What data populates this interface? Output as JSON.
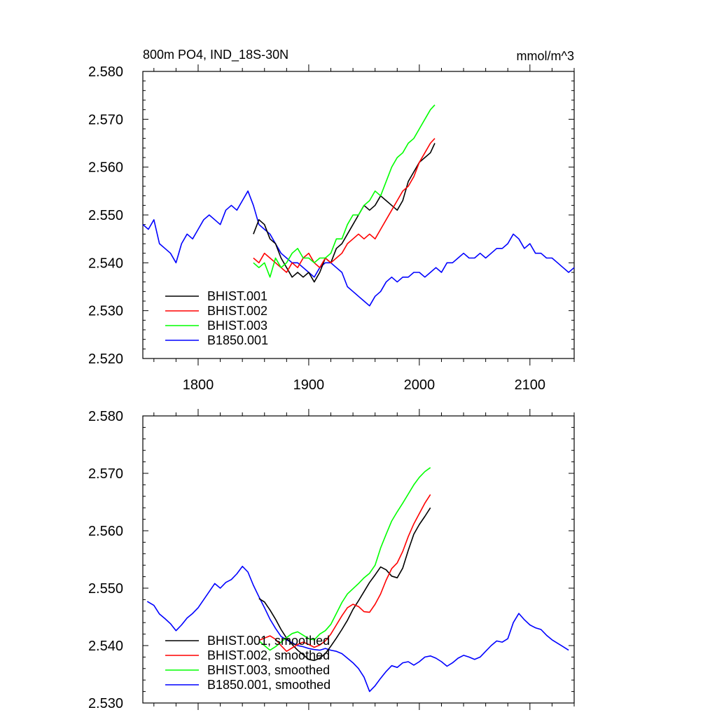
{
  "chart_data": [
    {
      "type": "line",
      "title": "800m PO4, IND_18S-30N",
      "units": "mmol/m^3",
      "xlim": [
        1750,
        2140
      ],
      "ylim": [
        2.52,
        2.58
      ],
      "xticks": [
        1800,
        1900,
        2000,
        2100
      ],
      "xtick_labels": [
        "1800",
        "1900",
        "2000",
        "2100"
      ],
      "yticks": [
        2.52,
        2.53,
        2.54,
        2.55,
        2.56,
        2.57,
        2.58
      ],
      "ytick_labels": [
        "2.520",
        "2.530",
        "2.540",
        "2.550",
        "2.560",
        "2.570",
        "2.580"
      ],
      "legend_position": "bottom-left",
      "series": [
        {
          "name": "BHIST.001",
          "color": "#000000",
          "x": [
            1850,
            1855,
            1860,
            1865,
            1870,
            1875,
            1880,
            1885,
            1890,
            1895,
            1900,
            1905,
            1910,
            1915,
            1920,
            1925,
            1930,
            1935,
            1940,
            1945,
            1950,
            1955,
            1960,
            1965,
            1970,
            1975,
            1980,
            1985,
            1990,
            1995,
            2000,
            2005,
            2010,
            2014
          ],
          "y": [
            2.546,
            2.549,
            2.548,
            2.545,
            2.544,
            2.541,
            2.539,
            2.537,
            2.538,
            2.537,
            2.538,
            2.536,
            2.538,
            2.541,
            2.54,
            2.543,
            2.544,
            2.546,
            2.548,
            2.55,
            2.552,
            2.551,
            2.552,
            2.554,
            2.553,
            2.552,
            2.551,
            2.553,
            2.557,
            2.559,
            2.561,
            2.562,
            2.563,
            2.565
          ]
        },
        {
          "name": "BHIST.002",
          "color": "#ff0000",
          "x": [
            1850,
            1855,
            1860,
            1865,
            1870,
            1875,
            1880,
            1885,
            1890,
            1895,
            1900,
            1905,
            1910,
            1915,
            1920,
            1925,
            1930,
            1935,
            1940,
            1945,
            1950,
            1955,
            1960,
            1965,
            1970,
            1975,
            1980,
            1985,
            1990,
            1995,
            2000,
            2005,
            2010,
            2014
          ],
          "y": [
            2.541,
            2.54,
            2.542,
            2.541,
            2.54,
            2.539,
            2.538,
            2.54,
            2.539,
            2.541,
            2.542,
            2.54,
            2.539,
            2.541,
            2.54,
            2.541,
            2.542,
            2.544,
            2.545,
            2.546,
            2.545,
            2.546,
            2.545,
            2.547,
            2.549,
            2.551,
            2.553,
            2.555,
            2.556,
            2.558,
            2.561,
            2.563,
            2.565,
            2.566
          ]
        },
        {
          "name": "BHIST.003",
          "color": "#00ff00",
          "x": [
            1850,
            1855,
            1860,
            1865,
            1870,
            1875,
            1880,
            1885,
            1890,
            1895,
            1900,
            1905,
            1910,
            1915,
            1920,
            1925,
            1930,
            1935,
            1940,
            1945,
            1950,
            1955,
            1960,
            1965,
            1970,
            1975,
            1980,
            1985,
            1990,
            1995,
            2000,
            2005,
            2010,
            2014
          ],
          "y": [
            2.54,
            2.539,
            2.54,
            2.537,
            2.541,
            2.539,
            2.54,
            2.542,
            2.543,
            2.541,
            2.541,
            2.54,
            2.541,
            2.541,
            2.542,
            2.545,
            2.545,
            2.548,
            2.55,
            2.55,
            2.552,
            2.553,
            2.555,
            2.554,
            2.557,
            2.56,
            2.562,
            2.563,
            2.565,
            2.566,
            2.568,
            2.57,
            2.572,
            2.573
          ]
        },
        {
          "name": "B1850.001",
          "color": "#0000ff",
          "x": [
            1750,
            1755,
            1760,
            1765,
            1770,
            1775,
            1780,
            1785,
            1790,
            1795,
            1800,
            1805,
            1810,
            1815,
            1820,
            1825,
            1830,
            1835,
            1840,
            1845,
            1850,
            1855,
            1860,
            1865,
            1870,
            1875,
            1880,
            1885,
            1890,
            1895,
            1900,
            1905,
            1910,
            1915,
            1920,
            1925,
            1930,
            1935,
            1940,
            1945,
            1950,
            1955,
            1960,
            1965,
            1970,
            1975,
            1980,
            1985,
            1990,
            1995,
            2000,
            2005,
            2010,
            2015,
            2020,
            2025,
            2030,
            2035,
            2040,
            2045,
            2050,
            2055,
            2060,
            2065,
            2070,
            2075,
            2080,
            2085,
            2090,
            2095,
            2100,
            2105,
            2110,
            2115,
            2120,
            2125,
            2130,
            2135,
            2140
          ],
          "y": [
            2.548,
            2.547,
            2.549,
            2.544,
            2.543,
            2.542,
            2.54,
            2.544,
            2.546,
            2.545,
            2.547,
            2.549,
            2.55,
            2.549,
            2.548,
            2.551,
            2.552,
            2.551,
            2.553,
            2.555,
            2.552,
            2.548,
            2.547,
            2.546,
            2.544,
            2.542,
            2.541,
            2.54,
            2.54,
            2.539,
            2.538,
            2.537,
            2.539,
            2.54,
            2.54,
            2.539,
            2.538,
            2.535,
            2.534,
            2.533,
            2.532,
            2.531,
            2.533,
            2.534,
            2.536,
            2.537,
            2.536,
            2.537,
            2.537,
            2.538,
            2.538,
            2.537,
            2.538,
            2.539,
            2.538,
            2.54,
            2.54,
            2.541,
            2.542,
            2.541,
            2.541,
            2.542,
            2.541,
            2.542,
            2.543,
            2.543,
            2.544,
            2.546,
            2.545,
            2.543,
            2.544,
            2.542,
            2.542,
            2.541,
            2.541,
            2.54,
            2.539,
            2.538,
            2.539
          ]
        }
      ]
    },
    {
      "type": "line",
      "title": "",
      "xlim": [
        1750,
        2140
      ],
      "ylim": [
        2.53,
        2.58
      ],
      "xticks": [
        1800,
        1900,
        2000,
        2100
      ],
      "yticks": [
        2.53,
        2.54,
        2.55,
        2.56,
        2.57,
        2.58
      ],
      "ytick_labels": [
        "2.530",
        "2.540",
        "2.550",
        "2.560",
        "2.570",
        "2.580"
      ],
      "legend_position": "bottom-left",
      "series": [
        {
          "name": "BHIST.001, smoothed",
          "color": "#000000",
          "x": [
            1855,
            1860,
            1865,
            1870,
            1875,
            1880,
            1885,
            1890,
            1895,
            1900,
            1905,
            1910,
            1915,
            1920,
            1925,
            1930,
            1935,
            1940,
            1945,
            1950,
            1955,
            1960,
            1965,
            1970,
            1975,
            1980,
            1985,
            1990,
            1995,
            2000,
            2005,
            2010
          ],
          "y": [
            2.5482,
            2.5476,
            2.5462,
            2.5446,
            2.5428,
            2.5413,
            2.5402,
            2.5392,
            2.5384,
            2.5376,
            2.5374,
            2.5378,
            2.5386,
            2.5399,
            2.5413,
            2.5428,
            2.5444,
            2.5463,
            2.5478,
            2.5494,
            2.551,
            2.5523,
            2.5537,
            2.5532,
            2.5521,
            2.5518,
            2.5535,
            2.5566,
            2.5594,
            2.5611,
            2.5625,
            2.564
          ]
        },
        {
          "name": "BHIST.002, smoothed",
          "color": "#ff0000",
          "x": [
            1855,
            1860,
            1865,
            1870,
            1875,
            1880,
            1885,
            1890,
            1895,
            1900,
            1905,
            1910,
            1915,
            1920,
            1925,
            1930,
            1935,
            1940,
            1945,
            1950,
            1955,
            1960,
            1965,
            1970,
            1975,
            1980,
            1985,
            1990,
            1995,
            2000,
            2005,
            2010
          ],
          "y": [
            2.5409,
            2.5413,
            2.5417,
            2.5411,
            2.54,
            2.539,
            2.5396,
            2.5402,
            2.5406,
            2.5402,
            2.5397,
            2.5401,
            2.5408,
            2.542,
            2.5436,
            2.5452,
            2.5466,
            2.5472,
            2.5468,
            2.5459,
            2.5458,
            2.5472,
            2.549,
            2.5514,
            2.5534,
            2.5544,
            2.5564,
            2.559,
            2.5612,
            2.563,
            2.5648,
            2.5663
          ]
        },
        {
          "name": "BHIST.003, smoothed",
          "color": "#00ff00",
          "x": [
            1855,
            1860,
            1865,
            1870,
            1875,
            1880,
            1885,
            1890,
            1895,
            1900,
            1905,
            1910,
            1915,
            1920,
            1925,
            1930,
            1935,
            1940,
            1945,
            1950,
            1955,
            1960,
            1965,
            1970,
            1975,
            1980,
            1985,
            1990,
            1995,
            2000,
            2005,
            2010
          ],
          "y": [
            2.5408,
            2.54,
            2.5392,
            2.5398,
            2.5406,
            2.5414,
            2.5421,
            2.5424,
            2.5418,
            2.5412,
            2.541,
            2.542,
            2.5426,
            2.5437,
            2.5456,
            2.5475,
            2.549,
            2.5499,
            2.5508,
            2.5518,
            2.5526,
            2.554,
            2.557,
            2.5594,
            2.5617,
            2.5633,
            2.5648,
            2.5664,
            2.568,
            2.5693,
            2.5703,
            2.571
          ]
        },
        {
          "name": "B1850.001, smoothed",
          "color": "#0000ff",
          "x": [
            1754,
            1760,
            1765,
            1770,
            1775,
            1780,
            1785,
            1790,
            1795,
            1800,
            1805,
            1810,
            1815,
            1820,
            1825,
            1830,
            1835,
            1840,
            1845,
            1850,
            1855,
            1860,
            1865,
            1870,
            1875,
            1880,
            1885,
            1890,
            1895,
            1900,
            1905,
            1910,
            1915,
            1920,
            1925,
            1930,
            1935,
            1940,
            1945,
            1950,
            1955,
            1960,
            1965,
            1970,
            1975,
            1980,
            1985,
            1990,
            1995,
            2000,
            2005,
            2010,
            2015,
            2020,
            2025,
            2030,
            2035,
            2040,
            2045,
            2050,
            2055,
            2060,
            2065,
            2070,
            2075,
            2080,
            2085,
            2090,
            2095,
            2100,
            2105,
            2110,
            2115,
            2120,
            2125,
            2130,
            2135
          ],
          "y": [
            2.5477,
            2.547,
            2.5455,
            2.5447,
            2.5438,
            2.5426,
            2.5436,
            2.5448,
            2.5456,
            2.5466,
            2.548,
            2.5494,
            2.5508,
            2.55,
            2.551,
            2.5515,
            2.5525,
            2.5538,
            2.5528,
            2.5505,
            2.5485,
            2.5466,
            2.5446,
            2.543,
            2.5416,
            2.541,
            2.5405,
            2.54,
            2.5398,
            2.5395,
            2.5393,
            2.5392,
            2.5395,
            2.5392,
            2.539,
            2.5386,
            2.5378,
            2.537,
            2.536,
            2.5345,
            2.532,
            2.533,
            2.5343,
            2.5355,
            2.5365,
            2.5362,
            2.537,
            2.5372,
            2.5366,
            2.5372,
            2.538,
            2.5382,
            2.5378,
            2.5372,
            2.5364,
            2.537,
            2.5378,
            2.5383,
            2.538,
            2.5376,
            2.538,
            2.539,
            2.54,
            2.5408,
            2.5406,
            2.5412,
            2.544,
            2.5456,
            2.5445,
            2.5436,
            2.5431,
            2.5428,
            2.5418,
            2.541,
            2.5404,
            2.5398,
            2.5392
          ]
        }
      ]
    }
  ]
}
